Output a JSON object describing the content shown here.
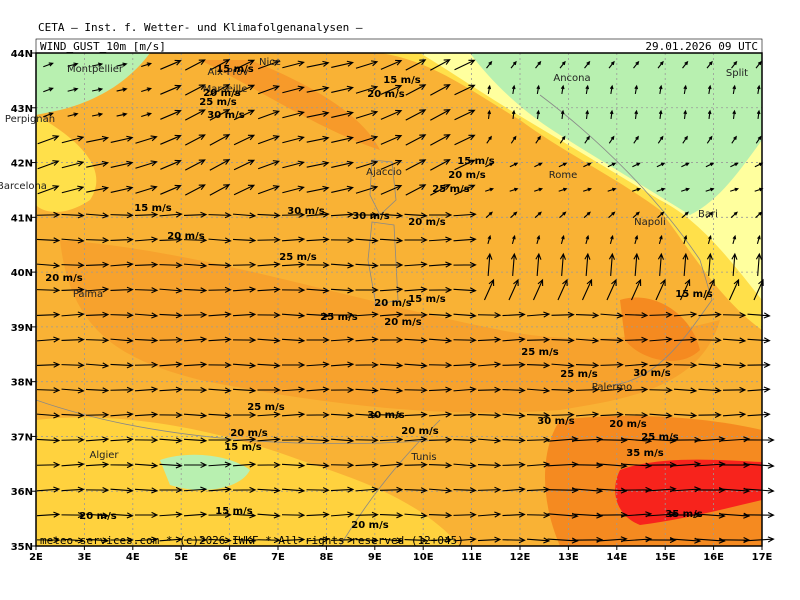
{
  "header": "CETA — Inst. f. Wetter- und Klimafolgenanalysen —",
  "map_title": "WIND_GUST_10m [m/s]",
  "valid_time": "29.01.2026 09 UTC",
  "footer": "meteo-services.com * (c)2026 IWKF * All rights reserved (12+045)",
  "lat_labels": [
    "44N",
    "43N",
    "42N",
    "41N",
    "40N",
    "39N",
    "38N",
    "37N",
    "36N",
    "35N"
  ],
  "lon_labels": [
    "2E",
    "3E",
    "4E",
    "5E",
    "6E",
    "7E",
    "8E",
    "9E",
    "10E",
    "11E",
    "12E",
    "13E",
    "14E",
    "15E",
    "16E",
    "17E"
  ],
  "cities": [
    "Montpellier",
    "Aix-Prov",
    "Nice",
    "Marseille",
    "Perpignan",
    "Barcelona",
    "Ajaccio",
    "Ancona",
    "Split",
    "Rome",
    "Napoli",
    "Bari",
    "Palma",
    "Palermo",
    "Algier",
    "Tunis"
  ],
  "contour_labels": [
    "15 m/s",
    "20 m/s",
    "25 m/s",
    "30 m/s",
    "15 m/s",
    "20 m/s",
    "15 m/s",
    "20 m/s",
    "25 m/s",
    "15 m/s",
    "30 m/s",
    "30 m/s",
    "20 m/s",
    "20 m/s",
    "25 m/s",
    "20 m/s",
    "20 m/s",
    "15 m/s",
    "15 m/s",
    "25 m/s",
    "20 m/s",
    "25 m/s",
    "25 m/s",
    "30 m/s",
    "25 m/s",
    "30 m/s",
    "30 m/s",
    "20 m/s",
    "25 m/s",
    "20 m/s",
    "20 m/s",
    "15 m/s",
    "35 m/s",
    "35 m/s",
    "15 m/s",
    "20 m/s",
    "20 m/s"
  ]
}
